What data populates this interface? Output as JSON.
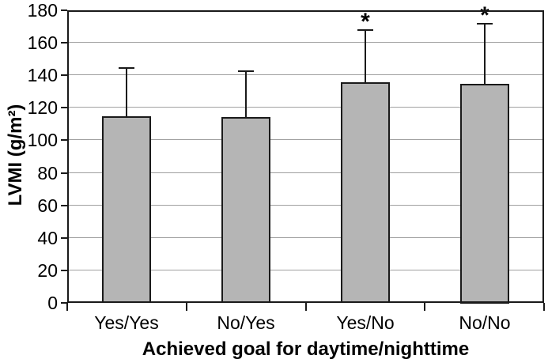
{
  "chart_data": {
    "type": "bar",
    "title": "",
    "xlabel": "Achieved goal for daytime/nighttime",
    "ylabel": "LVMI (g/m²)",
    "categories": [
      "Yes/Yes",
      "No/Yes",
      "Yes/No",
      "No/No"
    ],
    "values": [
      115,
      114.5,
      135.5,
      135
    ],
    "error_plus": [
      29.5,
      28,
      32.5,
      36.5
    ],
    "significance": [
      false,
      false,
      true,
      true
    ],
    "significance_marker": "*",
    "ylim": [
      0,
      180
    ],
    "ytick_step": 20,
    "ytick_labels": [
      "0",
      "20",
      "40",
      "60",
      "80",
      "100",
      "120",
      "140",
      "160",
      "180"
    ],
    "grid": true,
    "legend": "none",
    "colors": {
      "bar_fill": "#b5b5b5",
      "bar_border": "#1a1a1a",
      "gridline": "#a0a0a0",
      "axis": "#1a1a1a",
      "background": "#ffffff"
    }
  }
}
